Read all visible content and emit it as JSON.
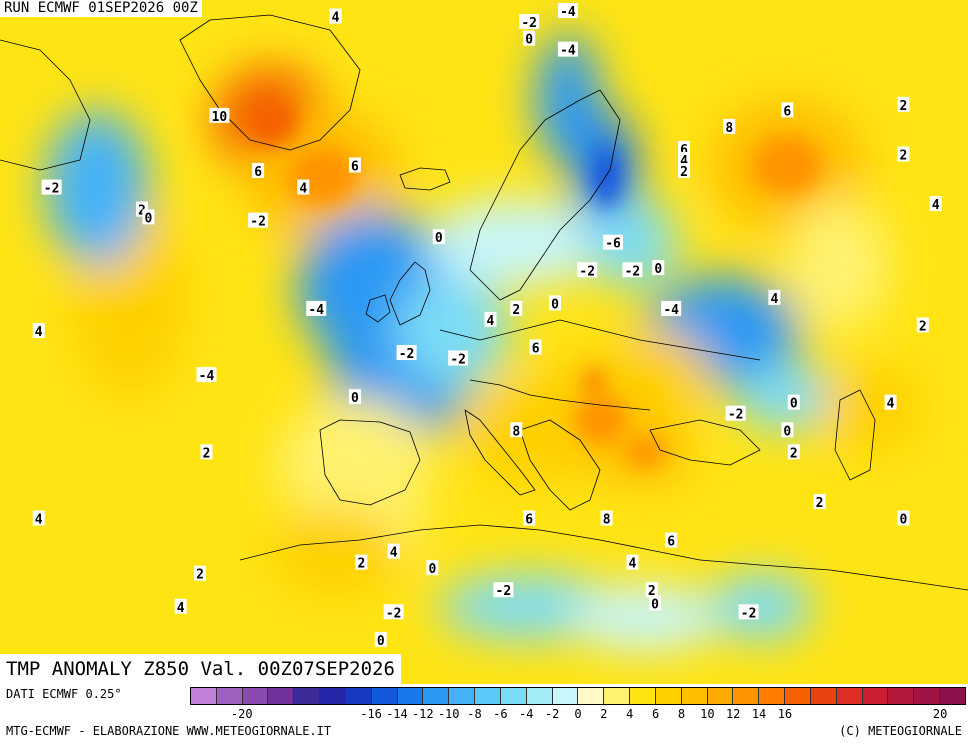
{
  "header": {
    "run_title": "RUN ECMWF 01SEP2026 00Z",
    "field_title": "TMP ANOMALY Z850 Val. 00Z07SEP2026"
  },
  "footer": {
    "data_source": "DATI ECMWF 0.25°",
    "credit_left": "MTG-ECMWF - ELABORAZIONE WWW.METEOGIORNALE.IT",
    "credit_right": "(C) METEOGIORNALE"
  },
  "legend": {
    "colors": [
      "#c080d8",
      "#a060c0",
      "#8a4aae",
      "#72309a",
      "#3c2c9a",
      "#2626a8",
      "#1838c2",
      "#1458dc",
      "#1a78ee",
      "#2c98f4",
      "#44b2f8",
      "#5ccaf8",
      "#7cdcf6",
      "#a2ecf8",
      "#c8f6fa",
      "#fffac8",
      "#fff270",
      "#ffe414",
      "#ffd000",
      "#ffbe00",
      "#ffaa00",
      "#ff9400",
      "#ff7c00",
      "#f46000",
      "#ea4210",
      "#de2e26",
      "#cc2032",
      "#b4183a",
      "#a01444",
      "#8c104a"
    ],
    "ticks": [
      "-20",
      "-16",
      "-14",
      "-12",
      "-10",
      "-8",
      "-6",
      "-4",
      "-2",
      "0",
      "2",
      "4",
      "6",
      "8",
      "10",
      "12",
      "14",
      "16",
      "20"
    ]
  },
  "map": {
    "anomaly_blobs": [
      {
        "anomaly": 3,
        "lon": -60.0,
        "lat": 55.0,
        "rx": 9,
        "ry": 9
      },
      {
        "anomaly": -3,
        "lon": -65.0,
        "lat": 65.0,
        "rx": 8,
        "ry": 7
      },
      {
        "anomaly": 9,
        "lon": -38.0,
        "lat": 71.0,
        "rx": 9,
        "ry": 5
      },
      {
        "anomaly": 6,
        "lon": -30.0,
        "lat": 66.0,
        "rx": 12,
        "ry": 6
      },
      {
        "anomaly": -4,
        "lon": -22.0,
        "lat": 56.0,
        "rx": 12,
        "ry": 7
      },
      {
        "anomaly": -4,
        "lon": -18.0,
        "lat": 48.0,
        "rx": 11,
        "ry": 6
      },
      {
        "anomaly": -2,
        "lon": -10.0,
        "lat": 52.0,
        "rx": 9,
        "ry": 5
      },
      {
        "anomaly": -1,
        "lon": 0.0,
        "lat": 60.0,
        "rx": 14,
        "ry": 4
      },
      {
        "anomaly": -5,
        "lon": 14.0,
        "lat": 66.0,
        "rx": 5,
        "ry": 6
      },
      {
        "anomaly": -4,
        "lon": 8.0,
        "lat": 73.0,
        "rx": 5,
        "ry": 6
      },
      {
        "anomaly": -2,
        "lon": 18.0,
        "lat": 60.0,
        "rx": 7,
        "ry": 4
      },
      {
        "anomaly": 6,
        "lon": 42.0,
        "lat": 67.0,
        "rx": 12,
        "ry": 6
      },
      {
        "anomaly": -4,
        "lon": 32.0,
        "lat": 52.0,
        "rx": 12,
        "ry": 5
      },
      {
        "anomaly": -2,
        "lon": 42.0,
        "lat": 46.0,
        "rx": 8,
        "ry": 3
      },
      {
        "anomaly": 4,
        "lon": 55.0,
        "lat": 45.0,
        "rx": 8,
        "ry": 4
      },
      {
        "anomaly": 2,
        "lon": 50.0,
        "lat": 58.0,
        "rx": 8,
        "ry": 6
      },
      {
        "anomaly": 8,
        "lon": 12.0,
        "lat": 47.5,
        "rx": 3,
        "ry": 2
      },
      {
        "anomaly": 6,
        "lon": 13.0,
        "lat": 44.0,
        "rx": 9,
        "ry": 5
      },
      {
        "anomaly": 6,
        "lon": 20.0,
        "lat": 41.0,
        "rx": 7,
        "ry": 3
      },
      {
        "anomaly": 4,
        "lon": 2.0,
        "lat": 43.0,
        "rx": 10,
        "ry": 5
      },
      {
        "anomaly": 4,
        "lon": 22.0,
        "lat": 48.0,
        "rx": 8,
        "ry": 4
      },
      {
        "anomaly": -2,
        "lon": 2.0,
        "lat": 27.0,
        "rx": 14,
        "ry": 3
      },
      {
        "anomaly": -1,
        "lon": 20.0,
        "lat": 26.0,
        "rx": 12,
        "ry": 3
      },
      {
        "anomaly": -2,
        "lon": 38.0,
        "lat": 27.0,
        "rx": 8,
        "ry": 3
      },
      {
        "anomaly": 2,
        "lon": -25.0,
        "lat": 40.0,
        "rx": 12,
        "ry": 6
      },
      {
        "anomaly": 1,
        "lon": -20.0,
        "lat": 34.0,
        "rx": 6,
        "ry": 3
      },
      {
        "anomaly": 3,
        "lon": -28.0,
        "lat": 32.0,
        "rx": 10,
        "ry": 4
      }
    ],
    "iso_labels": [
      {
        "text": "4",
        "lon": -28.0,
        "lat": 80.5
      },
      {
        "text": "-2",
        "lon": 2.0,
        "lat": 80.0
      },
      {
        "text": "-4",
        "lon": 8.0,
        "lat": 81.0
      },
      {
        "text": "0",
        "lon": 2.0,
        "lat": 78.5
      },
      {
        "text": "-4",
        "lon": 8.0,
        "lat": 77.5
      },
      {
        "text": "10",
        "lon": -46.0,
        "lat": 71.5
      },
      {
        "text": "6",
        "lon": -40.0,
        "lat": 66.5
      },
      {
        "text": "4",
        "lon": -33.0,
        "lat": 65.0
      },
      {
        "text": "6",
        "lon": -25.0,
        "lat": 67.0
      },
      {
        "text": "-2",
        "lon": -72.0,
        "lat": 65.0
      },
      {
        "text": "2",
        "lon": -58.0,
        "lat": 63.0
      },
      {
        "text": "0",
        "lon": -57.0,
        "lat": 62.3
      },
      {
        "text": "-2",
        "lon": -40.0,
        "lat": 62.0
      },
      {
        "text": "0",
        "lon": -12.0,
        "lat": 60.5
      },
      {
        "text": "-6",
        "lon": 15.0,
        "lat": 60.0
      },
      {
        "text": "-2",
        "lon": 11.0,
        "lat": 57.5
      },
      {
        "text": "-2",
        "lon": 18.0,
        "lat": 57.5
      },
      {
        "text": "0",
        "lon": 22.0,
        "lat": 57.7
      },
      {
        "text": "6",
        "lon": 26.0,
        "lat": 68.5
      },
      {
        "text": "4",
        "lon": 26.0,
        "lat": 67.5
      },
      {
        "text": "2",
        "lon": 26.0,
        "lat": 66.5
      },
      {
        "text": "8",
        "lon": 33.0,
        "lat": 70.5
      },
      {
        "text": "6",
        "lon": 42.0,
        "lat": 72.0
      },
      {
        "text": "2",
        "lon": 60.0,
        "lat": 72.5
      },
      {
        "text": "2",
        "lon": 60.0,
        "lat": 68.0
      },
      {
        "text": "4",
        "lon": 65.0,
        "lat": 63.5
      },
      {
        "text": "4",
        "lon": 40.0,
        "lat": 55.0
      },
      {
        "text": "2",
        "lon": 63.0,
        "lat": 52.5
      },
      {
        "text": "-4",
        "lon": 24.0,
        "lat": 54.0
      },
      {
        "text": "0",
        "lon": 6.0,
        "lat": 54.5
      },
      {
        "text": "2",
        "lon": 0.0,
        "lat": 54.0
      },
      {
        "text": "4",
        "lon": -4.0,
        "lat": 53.0
      },
      {
        "text": "6",
        "lon": 3.0,
        "lat": 50.5
      },
      {
        "text": "-4",
        "lon": -31.0,
        "lat": 54.0
      },
      {
        "text": "-2",
        "lon": -17.0,
        "lat": 50.0
      },
      {
        "text": "-2",
        "lon": -9.0,
        "lat": 49.5
      },
      {
        "text": "-4",
        "lon": -48.0,
        "lat": 48.0
      },
      {
        "text": "4",
        "lon": -74.0,
        "lat": 52.0
      },
      {
        "text": "0",
        "lon": -25.0,
        "lat": 46.0
      },
      {
        "text": "2",
        "lon": -48.0,
        "lat": 41.0
      },
      {
        "text": "4",
        "lon": -74.0,
        "lat": 35.0
      },
      {
        "text": "8",
        "lon": 0.0,
        "lat": 43.0
      },
      {
        "text": "6",
        "lon": 2.0,
        "lat": 35.0
      },
      {
        "text": "8",
        "lon": 14.0,
        "lat": 35.0
      },
      {
        "text": "6",
        "lon": 24.0,
        "lat": 33.0
      },
      {
        "text": "4",
        "lon": 18.0,
        "lat": 31.0
      },
      {
        "text": "2",
        "lon": -24.0,
        "lat": 31.0
      },
      {
        "text": "4",
        "lon": -19.0,
        "lat": 32.0
      },
      {
        "text": "2",
        "lon": -49.0,
        "lat": 30.0
      },
      {
        "text": "4",
        "lon": -52.0,
        "lat": 27.0
      },
      {
        "text": "0",
        "lon": -13.0,
        "lat": 30.5
      },
      {
        "text": "-2",
        "lon": -2.0,
        "lat": 28.5
      },
      {
        "text": "-2",
        "lon": -19.0,
        "lat": 26.5
      },
      {
        "text": "0",
        "lon": -21.0,
        "lat": 24.0
      },
      {
        "text": "2",
        "lon": 21.0,
        "lat": 28.5
      },
      {
        "text": "0",
        "lon": 21.5,
        "lat": 27.3
      },
      {
        "text": "-2",
        "lon": 36.0,
        "lat": 26.5
      },
      {
        "text": "0",
        "lon": 43.0,
        "lat": 45.5
      },
      {
        "text": "-2",
        "lon": 34.0,
        "lat": 44.5
      },
      {
        "text": "0",
        "lon": 42.0,
        "lat": 43.0
      },
      {
        "text": "2",
        "lon": 43.0,
        "lat": 41.0
      },
      {
        "text": "4",
        "lon": 58.0,
        "lat": 45.5
      },
      {
        "text": "2",
        "lon": 47.0,
        "lat": 36.5
      },
      {
        "text": "0",
        "lon": 60.0,
        "lat": 35.0
      }
    ]
  }
}
